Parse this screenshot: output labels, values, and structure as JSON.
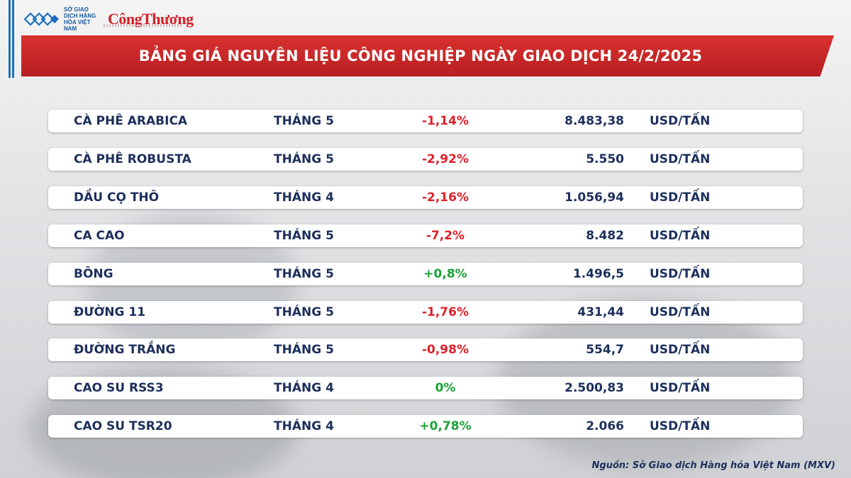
{
  "header": {
    "logo_mxv_text": "SỞ GIAO DỊCH HÀNG HÓA VIỆT NAM",
    "logo_brand": "CôngThương",
    "title": "BẢNG GIÁ NGUYÊN LIỆU CÔNG NGHIỆP NGÀY GIAO DỊCH 24/2/2025"
  },
  "colors": {
    "banner": "#c62828",
    "text": "#1c2f5c",
    "negative": "#e0202a",
    "positive": "#1aa336"
  },
  "rows": [
    {
      "name": "CÀ PHÊ ARABICA",
      "month": "THÁNG 5",
      "change": "-1,14%",
      "direction": "negative",
      "price": "8.483,38",
      "unit": "USD/TẤN"
    },
    {
      "name": "CÀ PHÊ ROBUSTA",
      "month": "THÁNG 5",
      "change": "-2,92%",
      "direction": "negative",
      "price": "5.550",
      "unit": "USD/TẤN"
    },
    {
      "name": "DẦU CỌ THÔ",
      "month": "THÁNG 4",
      "change": "-2,16%",
      "direction": "negative",
      "price": "1.056,94",
      "unit": "USD/TẤN"
    },
    {
      "name": "CA CAO",
      "month": "THÁNG 5",
      "change": "-7,2%",
      "direction": "negative",
      "price": "8.482",
      "unit": "USD/TẤN"
    },
    {
      "name": "BÔNG",
      "month": "THÁNG 5",
      "change": "+0,8%",
      "direction": "positive",
      "price": "1.496,5",
      "unit": "USD/TẤN"
    },
    {
      "name": "ĐƯỜNG 11",
      "month": "THÁNG 5",
      "change": "-1,76%",
      "direction": "negative",
      "price": "431,44",
      "unit": "USD/TẤN"
    },
    {
      "name": "ĐƯỜNG TRẮNG",
      "month": "THÁNG 5",
      "change": "-0,98%",
      "direction": "negative",
      "price": "554,7",
      "unit": "USD/TẤN"
    },
    {
      "name": "CAO SU RSS3",
      "month": "THÁNG 4",
      "change": "0%",
      "direction": "positive",
      "price": "2.500,83",
      "unit": "USD/TẤN"
    },
    {
      "name": "CAO SU TSR20",
      "month": "THÁNG 4",
      "change": "+0,78%",
      "direction": "positive",
      "price": "2.066",
      "unit": "USD/TẤN"
    }
  ],
  "footer": {
    "source": "Nguồn: Sở Giao dịch Hàng hóa Việt Nam (MXV)"
  }
}
